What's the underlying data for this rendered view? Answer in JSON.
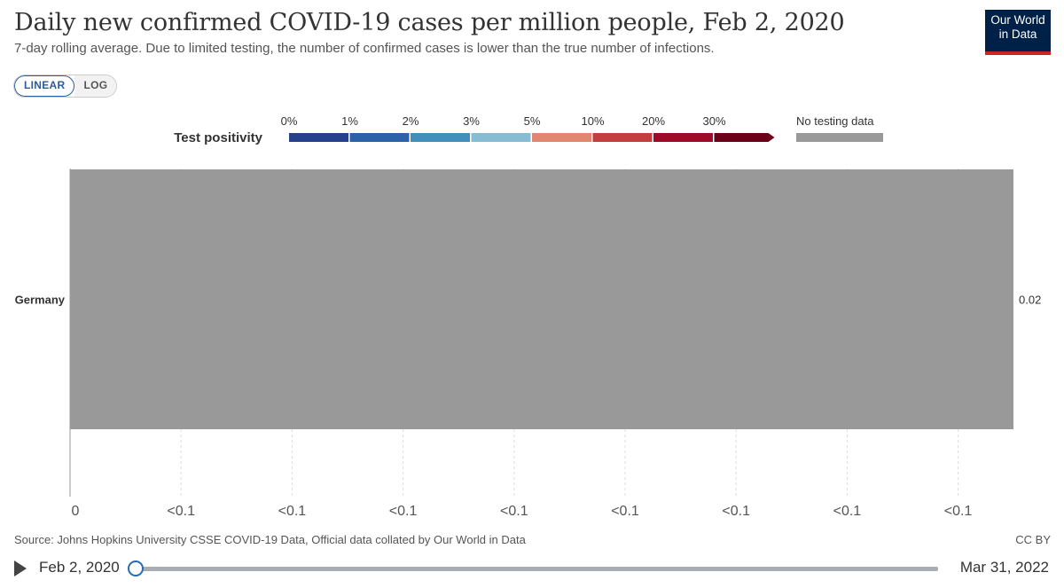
{
  "header": {
    "title": "Daily new confirmed COVID-19 cases per million people, Feb 2, 2020",
    "subtitle": "7-day rolling average. Due to limited testing, the number of confirmed cases is lower than the true number of infections.",
    "logo_line1": "Our World",
    "logo_line2": "in Data"
  },
  "scale_toggle": {
    "linear": "LINEAR",
    "log": "LOG",
    "selected": "LINEAR"
  },
  "colors": {
    "bar": "#999999",
    "legend_bins": [
      "#25418c",
      "#2c62a8",
      "#428fbc",
      "#86bcd4",
      "#e2876f",
      "#c53e3f",
      "#9e0a27",
      "#6b0019"
    ],
    "no_data": "#999999"
  },
  "chart_data": {
    "type": "bar",
    "orientation": "horizontal",
    "categories": [
      "Germany"
    ],
    "values": [
      0.02
    ],
    "value_labels": [
      "0.02"
    ],
    "x_ticks": [
      "0",
      "<0.1",
      "<0.1",
      "<0.1",
      "<0.1",
      "<0.1",
      "<0.1",
      "<0.1",
      "<0.1"
    ],
    "grid": "vertical dashed",
    "legend": {
      "title": "Test positivity",
      "bin_labels": [
        "0%",
        "1%",
        "2%",
        "3%",
        "5%",
        "10%",
        "20%",
        "30%"
      ],
      "no_data_label": "No testing data",
      "placement": "top"
    }
  },
  "footer": {
    "source": "Source: Johns Hopkins University CSSE COVID-19 Data, Official data collated by Our World in Data",
    "license": "CC BY"
  },
  "timeline": {
    "start_label": "Feb 2, 2020",
    "end_label": "Mar 31, 2022",
    "position": 0
  }
}
